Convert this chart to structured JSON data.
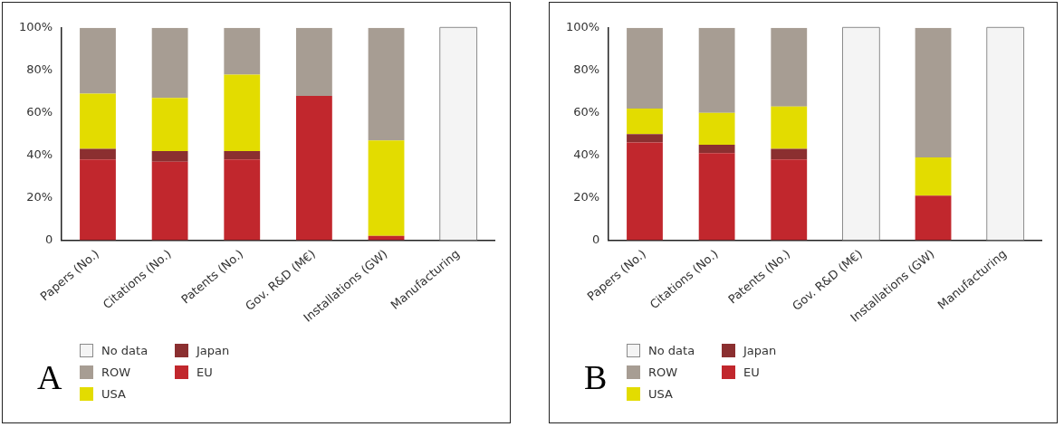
{
  "chart_data": [
    {
      "type": "bar",
      "stacked": true,
      "categories": [
        "Papers (No.)",
        "Citations (No.)",
        "Patents (No.)",
        "Gov. R&D (M€)",
        "Installations (GW)",
        "Manufacturing"
      ],
      "series": [
        {
          "name": "EU",
          "color": "#c1272d",
          "values": [
            38,
            37,
            38,
            68,
            2,
            null
          ]
        },
        {
          "name": "Japan",
          "color": "#8b2f30",
          "values": [
            5,
            5,
            4,
            null,
            null,
            null
          ]
        },
        {
          "name": "USA",
          "color": "#e3dc00",
          "values": [
            26,
            25,
            36,
            null,
            45,
            null
          ]
        },
        {
          "name": "ROW",
          "color": "#a79d93",
          "values": [
            31,
            33,
            22,
            32,
            53,
            null
          ]
        },
        {
          "name": "No data",
          "color": "#f4f4f4",
          "values": [
            null,
            null,
            null,
            null,
            null,
            100
          ]
        }
      ],
      "ylim": [
        0,
        100
      ],
      "yticks": [
        0,
        {
          "value": 20,
          "label": "20%"
        },
        {
          "value": 40,
          "label": "40%"
        },
        {
          "value": 60,
          "label": "60%"
        },
        {
          "value": 80,
          "label": "80%"
        },
        {
          "value": 100,
          "label": "100%"
        }
      ],
      "grid": false,
      "legend": "bottom",
      "annotations": [
        "A"
      ]
    },
    {
      "type": "bar",
      "stacked": true,
      "categories": [
        "Papers (No.)",
        "Citations (No.)",
        "Patents (No.)",
        "Gov. R&D (M€)",
        "Installations (GW)",
        "Manufacturing"
      ],
      "series": [
        {
          "name": "EU",
          "color": "#c1272d",
          "values": [
            46,
            41,
            38,
            null,
            21,
            null
          ]
        },
        {
          "name": "Japan",
          "color": "#8b2f30",
          "values": [
            4,
            4,
            5,
            null,
            null,
            null
          ]
        },
        {
          "name": "USA",
          "color": "#e3dc00",
          "values": [
            12,
            15,
            20,
            null,
            18,
            null
          ]
        },
        {
          "name": "ROW",
          "color": "#a79d93",
          "values": [
            38,
            40,
            37,
            null,
            61,
            null
          ]
        },
        {
          "name": "No data",
          "color": "#f4f4f4",
          "values": [
            null,
            null,
            null,
            100,
            null,
            100
          ]
        }
      ],
      "ylim": [
        0,
        100
      ],
      "yticks": [
        0,
        {
          "value": 20,
          "label": "20%"
        },
        {
          "value": 40,
          "label": "40%"
        },
        {
          "value": 60,
          "label": "60%"
        },
        {
          "value": 80,
          "label": "80%"
        },
        {
          "value": 100,
          "label": "100%"
        }
      ],
      "grid": false,
      "legend": "bottom",
      "annotations": [
        "B"
      ]
    }
  ]
}
